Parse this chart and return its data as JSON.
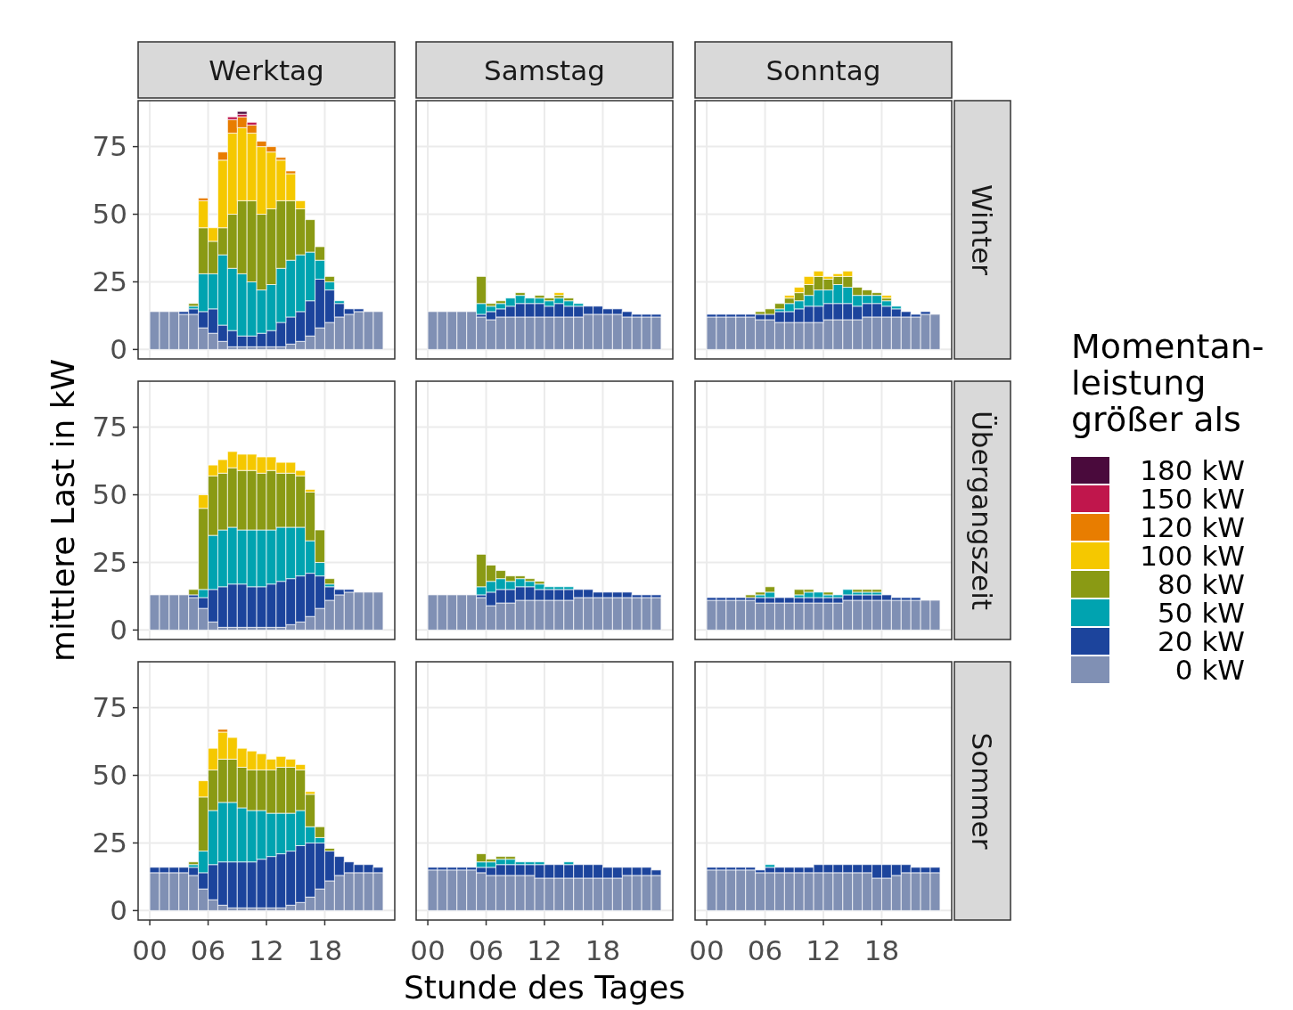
{
  "chart_data": [
    {
      "type": "bar",
      "stacked": true,
      "title": "Werktag",
      "tick_labels": "y",
      "grid": true,
      "legend": "right",
      "legend_title": "Momentan-\nleistung\ngrößer als",
      "x": [
        0.5,
        1.5,
        2.5,
        3.5,
        4.5,
        5.5,
        6.5,
        7.5,
        8.5,
        9.5,
        10.5,
        11.5,
        12.5,
        13.5,
        14.5,
        15.5,
        16.5,
        17.5,
        18.5,
        19.5,
        20.5,
        21.5,
        22.5,
        23.5
      ],
      "xlim": [
        -1.2,
        25.2
      ],
      "xticks": [
        {
          "value": 0,
          "label": null
        },
        {
          "value": 6,
          "label": null
        },
        {
          "value": 12,
          "label": null
        },
        {
          "value": 18,
          "label": null
        }
      ],
      "ylim": [
        -3.5,
        92
      ],
      "yticks": [
        0,
        25,
        50,
        75
      ],
      "series": [
        {
          "name": "0 kW",
          "color": "#8090b4",
          "values": [
            14,
            14,
            14,
            13,
            13,
            8,
            6,
            3,
            1,
            1,
            1,
            1,
            1,
            1,
            2,
            3,
            5,
            8,
            10,
            12,
            13,
            14,
            14,
            14
          ]
        },
        {
          "name": "20 kW",
          "color": "#1c449c",
          "values": [
            0,
            0,
            0,
            1,
            2,
            6,
            9,
            6,
            6,
            4,
            4,
            5,
            6,
            9,
            10,
            11,
            13,
            18,
            12,
            5,
            2,
            1,
            0,
            0
          ]
        },
        {
          "name": "50 kW",
          "color": "#00a3b0",
          "values": [
            0,
            0,
            0,
            0,
            1,
            14,
            13,
            26,
            23,
            23,
            20,
            16,
            17,
            20,
            21,
            21,
            18,
            7,
            3,
            1,
            0,
            0,
            0,
            0
          ]
        },
        {
          "name": "80 kW",
          "color": "#8a9a14",
          "values": [
            0,
            0,
            0,
            0,
            1,
            17,
            12,
            10,
            20,
            27,
            30,
            28,
            28,
            25,
            22,
            17,
            12,
            5,
            2,
            0,
            0,
            0,
            0,
            0
          ]
        },
        {
          "name": "100 kW",
          "color": "#f5c800",
          "values": [
            0,
            0,
            0,
            0,
            0,
            10,
            5,
            25,
            30,
            27,
            25,
            25,
            21,
            15,
            10,
            3,
            0,
            0,
            0,
            0,
            0,
            0,
            0,
            0
          ]
        },
        {
          "name": "120 kW",
          "color": "#e87d00",
          "values": [
            0,
            0,
            0,
            0,
            0,
            1,
            0,
            3,
            5,
            4,
            3,
            2,
            2,
            1,
            1,
            0,
            0,
            0,
            0,
            0,
            0,
            0,
            0,
            0
          ]
        },
        {
          "name": "150 kW",
          "color": "#c0164c",
          "values": [
            0,
            0,
            0,
            0,
            0,
            0,
            0,
            0,
            1,
            1,
            1,
            0,
            0,
            0,
            0,
            0,
            0,
            0,
            0,
            0,
            0,
            0,
            0,
            0
          ]
        },
        {
          "name": "180 kW",
          "color": "#4a0a3c",
          "values": [
            0,
            0,
            0,
            0,
            0,
            0,
            0,
            0,
            0,
            1,
            0,
            0,
            0,
            0,
            0,
            0,
            0,
            0,
            0,
            0,
            0,
            0,
            0,
            0
          ]
        }
      ]
    },
    {
      "type": "bar",
      "stacked": true,
      "title": "Samstag",
      "tick_labels": false,
      "grid": true,
      "x": [
        0.5,
        1.5,
        2.5,
        3.5,
        4.5,
        5.5,
        6.5,
        7.5,
        8.5,
        9.5,
        10.5,
        11.5,
        12.5,
        13.5,
        14.5,
        15.5,
        16.5,
        17.5,
        18.5,
        19.5,
        20.5,
        21.5,
        22.5,
        23.5
      ],
      "xlim": [
        -1.2,
        25.2
      ],
      "xticks": [
        {
          "value": 0,
          "label": null
        },
        {
          "value": 6,
          "label": null
        },
        {
          "value": 12,
          "label": null
        },
        {
          "value": 18,
          "label": null
        }
      ],
      "ylim": [
        -3.5,
        92
      ],
      "yticks": [
        {
          "value": 0,
          "label": null
        },
        {
          "value": 25,
          "label": null
        },
        {
          "value": 50,
          "label": null
        },
        {
          "value": 75,
          "label": null
        }
      ],
      "series": [
        {
          "color": "#8090b4",
          "values": [
            14,
            14,
            14,
            14,
            14,
            12,
            11,
            12,
            12,
            12,
            12,
            12,
            12,
            12,
            12,
            12,
            13,
            13,
            13,
            13,
            12,
            12,
            12,
            12
          ]
        },
        {
          "color": "#1c449c",
          "values": [
            0,
            0,
            0,
            0,
            0,
            1,
            3,
            3,
            4,
            5,
            5,
            5,
            4,
            5,
            4,
            4,
            3,
            3,
            2,
            2,
            2,
            1,
            1,
            1
          ]
        },
        {
          "color": "#00a3b0",
          "values": [
            0,
            0,
            0,
            0,
            0,
            4,
            2,
            2,
            3,
            3,
            2,
            2,
            2,
            2,
            2,
            1,
            0,
            0,
            0,
            0,
            0,
            0,
            0,
            0
          ]
        },
        {
          "color": "#8a9a14",
          "values": [
            0,
            0,
            0,
            0,
            0,
            10,
            1,
            1,
            0,
            1,
            0,
            1,
            1,
            1,
            1,
            0,
            0,
            0,
            0,
            0,
            0,
            0,
            0,
            0
          ]
        },
        {
          "color": "#f5c800",
          "values": [
            0,
            0,
            0,
            0,
            0,
            0,
            0,
            0,
            0,
            0,
            0,
            0,
            0,
            1,
            0,
            0,
            0,
            0,
            0,
            0,
            0,
            0,
            0,
            0
          ]
        }
      ]
    },
    {
      "type": "bar",
      "stacked": true,
      "title": "Sonntag",
      "y2label": "Winter",
      "tick_labels": false,
      "grid": true,
      "x": [
        0.5,
        1.5,
        2.5,
        3.5,
        4.5,
        5.5,
        6.5,
        7.5,
        8.5,
        9.5,
        10.5,
        11.5,
        12.5,
        13.5,
        14.5,
        15.5,
        16.5,
        17.5,
        18.5,
        19.5,
        20.5,
        21.5,
        22.5,
        23.5
      ],
      "xlim": [
        -1.2,
        25.2
      ],
      "xticks": [
        {
          "value": 0,
          "label": null
        },
        {
          "value": 6,
          "label": null
        },
        {
          "value": 12,
          "label": null
        },
        {
          "value": 18,
          "label": null
        }
      ],
      "ylim": [
        -3.5,
        92
      ],
      "yticks": [
        {
          "value": 0,
          "label": null
        },
        {
          "value": 25,
          "label": null
        },
        {
          "value": 50,
          "label": null
        },
        {
          "value": 75,
          "label": null
        }
      ],
      "series": [
        {
          "color": "#8090b4",
          "values": [
            12,
            12,
            12,
            12,
            12,
            11,
            11,
            10,
            10,
            10,
            10,
            10,
            11,
            11,
            11,
            11,
            12,
            12,
            12,
            12,
            12,
            12,
            13,
            13
          ]
        },
        {
          "color": "#1c449c",
          "values": [
            1,
            1,
            1,
            1,
            1,
            2,
            2,
            4,
            4,
            5,
            6,
            6,
            6,
            6,
            6,
            5,
            5,
            5,
            4,
            3,
            2,
            1,
            1,
            0
          ]
        },
        {
          "color": "#00a3b0",
          "values": [
            0,
            0,
            0,
            0,
            0,
            0,
            0,
            1,
            3,
            3,
            4,
            6,
            5,
            7,
            6,
            4,
            3,
            3,
            2,
            1,
            0,
            0,
            0,
            0
          ]
        },
        {
          "color": "#8a9a14",
          "values": [
            0,
            0,
            0,
            0,
            0,
            1,
            2,
            2,
            2,
            3,
            4,
            5,
            4,
            3,
            4,
            3,
            2,
            1,
            1,
            0,
            0,
            0,
            0,
            0
          ]
        },
        {
          "color": "#f5c800",
          "values": [
            0,
            0,
            0,
            0,
            0,
            0,
            0,
            0,
            1,
            2,
            3,
            2,
            1,
            1,
            2,
            0,
            0,
            0,
            1,
            0,
            0,
            0,
            0,
            0
          ]
        }
      ]
    },
    {
      "type": "bar",
      "stacked": true,
      "ylabel": "mittlere Last in kW",
      "tick_labels": "y",
      "grid": true,
      "x": [
        0.5,
        1.5,
        2.5,
        3.5,
        4.5,
        5.5,
        6.5,
        7.5,
        8.5,
        9.5,
        10.5,
        11.5,
        12.5,
        13.5,
        14.5,
        15.5,
        16.5,
        17.5,
        18.5,
        19.5,
        20.5,
        21.5,
        22.5,
        23.5
      ],
      "xlim": [
        -1.2,
        25.2
      ],
      "xticks": [
        {
          "value": 0,
          "label": null
        },
        {
          "value": 6,
          "label": null
        },
        {
          "value": 12,
          "label": null
        },
        {
          "value": 18,
          "label": null
        }
      ],
      "ylim": [
        -3.5,
        92
      ],
      "yticks": [
        0,
        25,
        50,
        75
      ],
      "series": [
        {
          "color": "#8090b4",
          "values": [
            13,
            13,
            13,
            13,
            12,
            8,
            3,
            1,
            1,
            1,
            1,
            1,
            1,
            1,
            2,
            3,
            5,
            8,
            11,
            13,
            14,
            14,
            14,
            14
          ]
        },
        {
          "color": "#1c449c",
          "values": [
            0,
            0,
            0,
            0,
            1,
            4,
            12,
            15,
            16,
            16,
            15,
            15,
            16,
            17,
            17,
            17,
            16,
            12,
            5,
            2,
            1,
            0,
            0,
            0
          ]
        },
        {
          "color": "#00a3b0",
          "values": [
            0,
            0,
            0,
            0,
            0,
            3,
            20,
            21,
            21,
            20,
            21,
            21,
            20,
            20,
            19,
            18,
            12,
            5,
            1,
            0,
            0,
            0,
            0,
            0
          ]
        },
        {
          "color": "#8a9a14",
          "values": [
            0,
            0,
            0,
            0,
            2,
            30,
            22,
            21,
            22,
            22,
            22,
            21,
            22,
            20,
            20,
            19,
            18,
            12,
            2,
            0,
            0,
            0,
            0,
            0
          ]
        },
        {
          "color": "#f5c800",
          "values": [
            0,
            0,
            0,
            0,
            0,
            5,
            4,
            5,
            6,
            6,
            6,
            6,
            5,
            4,
            4,
            2,
            1,
            0,
            0,
            0,
            0,
            0,
            0,
            0
          ]
        }
      ]
    },
    {
      "type": "bar",
      "stacked": true,
      "tick_labels": false,
      "grid": true,
      "x": [
        0.5,
        1.5,
        2.5,
        3.5,
        4.5,
        5.5,
        6.5,
        7.5,
        8.5,
        9.5,
        10.5,
        11.5,
        12.5,
        13.5,
        14.5,
        15.5,
        16.5,
        17.5,
        18.5,
        19.5,
        20.5,
        21.5,
        22.5,
        23.5
      ],
      "xlim": [
        -1.2,
        25.2
      ],
      "xticks": [
        {
          "value": 0,
          "label": null
        },
        {
          "value": 6,
          "label": null
        },
        {
          "value": 12,
          "label": null
        },
        {
          "value": 18,
          "label": null
        }
      ],
      "ylim": [
        -3.5,
        92
      ],
      "yticks": [
        {
          "value": 0,
          "label": null
        },
        {
          "value": 25,
          "label": null
        },
        {
          "value": 50,
          "label": null
        },
        {
          "value": 75,
          "label": null
        }
      ],
      "series": [
        {
          "color": "#8090b4",
          "values": [
            13,
            13,
            13,
            13,
            13,
            12,
            9,
            10,
            10,
            11,
            11,
            11,
            11,
            11,
            11,
            12,
            12,
            12,
            12,
            12,
            12,
            12,
            12,
            12
          ]
        },
        {
          "color": "#1c449c",
          "values": [
            0,
            0,
            0,
            0,
            0,
            1,
            5,
            5,
            5,
            5,
            5,
            4,
            4,
            4,
            4,
            3,
            3,
            2,
            2,
            2,
            2,
            1,
            1,
            1
          ]
        },
        {
          "color": "#00a3b0",
          "values": [
            0,
            0,
            0,
            0,
            0,
            3,
            4,
            4,
            3,
            3,
            2,
            2,
            1,
            1,
            1,
            0,
            0,
            0,
            0,
            0,
            0,
            0,
            0,
            0
          ]
        },
        {
          "color": "#8a9a14",
          "values": [
            0,
            0,
            0,
            0,
            0,
            12,
            6,
            3,
            2,
            1,
            1,
            1,
            0,
            0,
            0,
            0,
            0,
            0,
            0,
            0,
            0,
            0,
            0,
            0
          ]
        }
      ]
    },
    {
      "type": "bar",
      "stacked": true,
      "y2label": "Übergangszeit",
      "tick_labels": false,
      "grid": true,
      "x": [
        0.5,
        1.5,
        2.5,
        3.5,
        4.5,
        5.5,
        6.5,
        7.5,
        8.5,
        9.5,
        10.5,
        11.5,
        12.5,
        13.5,
        14.5,
        15.5,
        16.5,
        17.5,
        18.5,
        19.5,
        20.5,
        21.5,
        22.5,
        23.5
      ],
      "xlim": [
        -1.2,
        25.2
      ],
      "xticks": [
        {
          "value": 0,
          "label": null
        },
        {
          "value": 6,
          "label": null
        },
        {
          "value": 12,
          "label": null
        },
        {
          "value": 18,
          "label": null
        }
      ],
      "ylim": [
        -3.5,
        92
      ],
      "yticks": [
        {
          "value": 0,
          "label": null
        },
        {
          "value": 25,
          "label": null
        },
        {
          "value": 50,
          "label": null
        },
        {
          "value": 75,
          "label": null
        }
      ],
      "series": [
        {
          "color": "#8090b4",
          "values": [
            11,
            11,
            11,
            11,
            11,
            10,
            10,
            10,
            10,
            10,
            10,
            10,
            10,
            10,
            11,
            11,
            11,
            11,
            11,
            11,
            11,
            11,
            11,
            11
          ]
        },
        {
          "color": "#1c449c",
          "values": [
            1,
            1,
            1,
            1,
            1,
            2,
            2,
            2,
            2,
            2,
            2,
            2,
            2,
            2,
            2,
            2,
            2,
            2,
            2,
            1,
            1,
            1,
            0,
            0
          ]
        },
        {
          "color": "#00a3b0",
          "values": [
            0,
            0,
            0,
            0,
            0,
            1,
            2,
            0,
            0,
            1,
            2,
            2,
            1,
            1,
            2,
            1,
            1,
            1,
            0,
            0,
            0,
            0,
            0,
            0
          ]
        },
        {
          "color": "#8a9a14",
          "values": [
            0,
            0,
            0,
            0,
            1,
            1,
            2,
            0,
            0,
            2,
            1,
            0,
            1,
            0,
            0,
            1,
            1,
            1,
            0,
            0,
            0,
            0,
            0,
            0
          ]
        }
      ]
    },
    {
      "type": "bar",
      "stacked": true,
      "grid": true,
      "x": [
        0.5,
        1.5,
        2.5,
        3.5,
        4.5,
        5.5,
        6.5,
        7.5,
        8.5,
        9.5,
        10.5,
        11.5,
        12.5,
        13.5,
        14.5,
        15.5,
        16.5,
        17.5,
        18.5,
        19.5,
        20.5,
        21.5,
        22.5,
        23.5
      ],
      "xlim": [
        -1.2,
        25.2
      ],
      "xticks": [
        {
          "value": 0,
          "label": "00"
        },
        {
          "value": 6,
          "label": "06"
        },
        {
          "value": 12,
          "label": "12"
        },
        {
          "value": 18,
          "label": "18"
        }
      ],
      "ylim": [
        -3.5,
        92
      ],
      "yticks": [
        0,
        25,
        50,
        75
      ],
      "series": [
        {
          "color": "#8090b4",
          "values": [
            14,
            14,
            14,
            14,
            13,
            8,
            4,
            2,
            1,
            1,
            1,
            1,
            1,
            1,
            2,
            3,
            5,
            8,
            11,
            13,
            14,
            14,
            14,
            14
          ]
        },
        {
          "color": "#1c449c",
          "values": [
            2,
            2,
            2,
            2,
            3,
            6,
            13,
            16,
            17,
            17,
            17,
            18,
            19,
            20,
            20,
            21,
            20,
            17,
            11,
            7,
            4,
            3,
            3,
            2
          ]
        },
        {
          "color": "#00a3b0",
          "values": [
            0,
            0,
            0,
            0,
            1,
            8,
            20,
            22,
            22,
            20,
            19,
            18,
            16,
            15,
            14,
            13,
            6,
            2,
            0,
            0,
            0,
            0,
            0,
            0
          ]
        },
        {
          "color": "#8a9a14",
          "values": [
            0,
            0,
            0,
            0,
            1,
            20,
            15,
            16,
            16,
            15,
            15,
            15,
            16,
            17,
            17,
            15,
            12,
            4,
            1,
            0,
            0,
            0,
            0,
            0
          ]
        },
        {
          "color": "#f5c800",
          "values": [
            0,
            0,
            0,
            0,
            0,
            6,
            8,
            10,
            8,
            7,
            7,
            6,
            4,
            4,
            3,
            2,
            1,
            0,
            0,
            0,
            0,
            0,
            0,
            0
          ]
        },
        {
          "color": "#e87d00",
          "values": [
            0,
            0,
            0,
            0,
            0,
            0,
            0,
            1,
            0,
            0,
            0,
            0,
            0,
            0,
            0,
            0,
            0,
            0,
            0,
            0,
            0,
            0,
            0,
            0
          ]
        }
      ]
    },
    {
      "type": "bar",
      "stacked": true,
      "xlabel": "Stunde des Tages",
      "tick_labels": "x",
      "grid": true,
      "x": [
        0.5,
        1.5,
        2.5,
        3.5,
        4.5,
        5.5,
        6.5,
        7.5,
        8.5,
        9.5,
        10.5,
        11.5,
        12.5,
        13.5,
        14.5,
        15.5,
        16.5,
        17.5,
        18.5,
        19.5,
        20.5,
        21.5,
        22.5,
        23.5
      ],
      "xlim": [
        -1.2,
        25.2
      ],
      "xticks": [
        {
          "value": 0,
          "label": "00"
        },
        {
          "value": 6,
          "label": "06"
        },
        {
          "value": 12,
          "label": "12"
        },
        {
          "value": 18,
          "label": "18"
        }
      ],
      "ylim": [
        -3.5,
        92
      ],
      "yticks": [
        {
          "value": 0,
          "label": null
        },
        {
          "value": 25,
          "label": null
        },
        {
          "value": 50,
          "label": null
        },
        {
          "value": 75,
          "label": null
        }
      ],
      "series": [
        {
          "color": "#8090b4",
          "values": [
            15,
            15,
            15,
            15,
            15,
            14,
            13,
            13,
            13,
            13,
            13,
            12,
            12,
            12,
            12,
            12,
            12,
            12,
            12,
            12,
            13,
            13,
            13,
            13
          ]
        },
        {
          "color": "#1c449c",
          "values": [
            1,
            1,
            1,
            1,
            1,
            2,
            3,
            4,
            4,
            4,
            4,
            5,
            5,
            5,
            5,
            5,
            5,
            5,
            4,
            4,
            3,
            3,
            3,
            2
          ]
        },
        {
          "color": "#00a3b0",
          "values": [
            0,
            0,
            0,
            0,
            0,
            2,
            2,
            2,
            2,
            1,
            1,
            1,
            0,
            0,
            1,
            0,
            0,
            0,
            0,
            0,
            0,
            0,
            0,
            0
          ]
        },
        {
          "color": "#8a9a14",
          "values": [
            0,
            0,
            0,
            0,
            0,
            3,
            1,
            1,
            1,
            0,
            0,
            0,
            0,
            0,
            0,
            0,
            0,
            0,
            0,
            0,
            0,
            0,
            0,
            0
          ]
        }
      ]
    },
    {
      "type": "bar",
      "stacked": true,
      "y2label": "Sommer",
      "tick_labels": "x",
      "grid": true,
      "x": [
        0.5,
        1.5,
        2.5,
        3.5,
        4.5,
        5.5,
        6.5,
        7.5,
        8.5,
        9.5,
        10.5,
        11.5,
        12.5,
        13.5,
        14.5,
        15.5,
        16.5,
        17.5,
        18.5,
        19.5,
        20.5,
        21.5,
        22.5,
        23.5
      ],
      "xlim": [
        -1.2,
        25.2
      ],
      "xticks": [
        {
          "value": 0,
          "label": "00"
        },
        {
          "value": 6,
          "label": "06"
        },
        {
          "value": 12,
          "label": "12"
        },
        {
          "value": 18,
          "label": "18"
        }
      ],
      "ylim": [
        -3.5,
        92
      ],
      "yticks": [
        {
          "value": 0,
          "label": null
        },
        {
          "value": 25,
          "label": null
        },
        {
          "value": 50,
          "label": null
        },
        {
          "value": 75,
          "label": null
        }
      ],
      "series": [
        {
          "color": "#8090b4",
          "values": [
            15,
            15,
            15,
            15,
            15,
            14,
            14,
            14,
            14,
            14,
            14,
            14,
            14,
            14,
            14,
            14,
            14,
            12,
            12,
            13,
            14,
            14,
            14,
            14
          ]
        },
        {
          "color": "#1c449c",
          "values": [
            1,
            1,
            1,
            1,
            1,
            1,
            2,
            2,
            2,
            2,
            2,
            3,
            3,
            3,
            3,
            3,
            3,
            5,
            5,
            4,
            3,
            2,
            2,
            2
          ]
        },
        {
          "color": "#00a3b0",
          "values": [
            0,
            0,
            0,
            0,
            0,
            0,
            1,
            0,
            0,
            0,
            0,
            0,
            0,
            0,
            0,
            0,
            0,
            0,
            0,
            0,
            0,
            0,
            0,
            0
          ]
        }
      ]
    }
  ]
}
